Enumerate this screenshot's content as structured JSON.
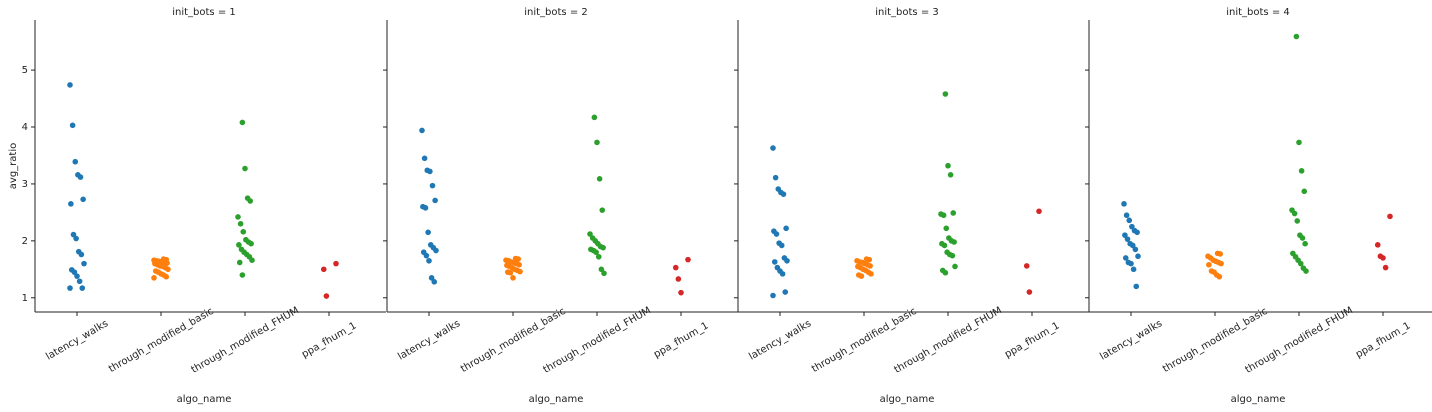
{
  "chart_data": [
    {
      "type": "strip",
      "title": "init_bots = 1",
      "x_label": "algo_name",
      "y_label": "avg_ratio",
      "categories": [
        "latency_walks",
        "through_modified_basic",
        "through_modified_FHUM",
        "ppa_fhum_1"
      ],
      "colors": [
        "#1f77b4",
        "#ff7f0e",
        "#2ca02c",
        "#d62728"
      ],
      "ylim": [
        0.75,
        5.88
      ],
      "yticks": [
        1,
        2,
        3,
        4,
        5
      ],
      "values": [
        [
          4.74,
          4.03,
          3.39,
          3.16,
          3.12,
          2.73,
          2.65,
          2.11,
          2.04,
          1.81,
          1.76,
          1.6,
          1.49,
          1.45,
          1.38,
          1.29,
          1.17,
          1.17
        ],
        [
          1.68,
          1.67,
          1.66,
          1.65,
          1.64,
          1.63,
          1.62,
          1.61,
          1.6,
          1.58,
          1.56,
          1.55,
          1.53,
          1.5,
          1.47,
          1.45,
          1.42,
          1.4,
          1.37,
          1.35
        ],
        [
          4.08,
          3.27,
          2.75,
          2.7,
          2.42,
          2.3,
          2.16,
          2.02,
          1.98,
          1.95,
          1.93,
          1.85,
          1.8,
          1.76,
          1.72,
          1.66,
          1.62,
          1.4
        ],
        [
          1.6,
          1.5,
          1.03
        ]
      ]
    },
    {
      "type": "strip",
      "title": "init_bots = 2",
      "x_label": "algo_name",
      "categories": [
        "latency_walks",
        "through_modified_basic",
        "through_modified_FHUM",
        "ppa_fhum_1"
      ],
      "colors": [
        "#1f77b4",
        "#ff7f0e",
        "#2ca02c",
        "#d62728"
      ],
      "values": [
        [
          3.94,
          3.45,
          3.24,
          3.22,
          2.97,
          2.71,
          2.6,
          2.58,
          2.15,
          1.93,
          1.88,
          1.83,
          1.8,
          1.74,
          1.65,
          1.35,
          1.28
        ],
        [
          1.69,
          1.68,
          1.66,
          1.65,
          1.63,
          1.62,
          1.6,
          1.58,
          1.57,
          1.55,
          1.53,
          1.5,
          1.48,
          1.46,
          1.45,
          1.44,
          1.35
        ],
        [
          4.17,
          3.73,
          3.09,
          2.54,
          2.12,
          2.05,
          2.0,
          1.95,
          1.9,
          1.88,
          1.85,
          1.83,
          1.8,
          1.72,
          1.5,
          1.43
        ],
        [
          1.67,
          1.53,
          1.33,
          1.09
        ]
      ]
    },
    {
      "type": "strip",
      "title": "init_bots = 3",
      "x_label": "algo_name",
      "categories": [
        "latency_walks",
        "through_modified_basic",
        "through_modified_FHUM",
        "ppa_fhum_1"
      ],
      "colors": [
        "#1f77b4",
        "#ff7f0e",
        "#2ca02c",
        "#d62728"
      ],
      "values": [
        [
          3.63,
          3.11,
          2.91,
          2.85,
          2.82,
          2.22,
          2.17,
          2.12,
          1.96,
          1.92,
          1.7,
          1.65,
          1.63,
          1.53,
          1.47,
          1.42,
          1.1,
          1.04
        ],
        [
          1.68,
          1.67,
          1.65,
          1.63,
          1.62,
          1.6,
          1.58,
          1.56,
          1.55,
          1.53,
          1.5,
          1.48,
          1.45,
          1.42,
          1.4,
          1.38
        ],
        [
          4.58,
          3.32,
          3.16,
          2.49,
          2.47,
          2.45,
          2.22,
          2.05,
          2.0,
          1.98,
          1.95,
          1.92,
          1.8,
          1.76,
          1.74,
          1.55,
          1.48,
          1.44
        ],
        [
          2.52,
          1.56,
          1.1
        ]
      ]
    },
    {
      "type": "strip",
      "title": "init_bots = 4",
      "x_label": "algo_name",
      "categories": [
        "latency_walks",
        "through_modified_basic",
        "through_modified_FHUM",
        "ppa_fhum_1"
      ],
      "colors": [
        "#1f77b4",
        "#ff7f0e",
        "#2ca02c",
        "#d62728"
      ],
      "values": [
        [
          2.65,
          2.45,
          2.36,
          2.25,
          2.18,
          2.15,
          2.1,
          2.03,
          1.95,
          1.92,
          1.85,
          1.73,
          1.7,
          1.62,
          1.6,
          1.5,
          1.2
        ],
        [
          1.78,
          1.77,
          1.73,
          1.7,
          1.66,
          1.64,
          1.62,
          1.6,
          1.58,
          1.47,
          1.45,
          1.4,
          1.37
        ],
        [
          5.59,
          3.73,
          3.23,
          2.87,
          2.54,
          2.48,
          2.35,
          2.1,
          2.05,
          1.95,
          1.78,
          1.72,
          1.66,
          1.6,
          1.52,
          1.47
        ],
        [
          2.43,
          1.93,
          1.73,
          1.7,
          1.53
        ]
      ]
    }
  ]
}
